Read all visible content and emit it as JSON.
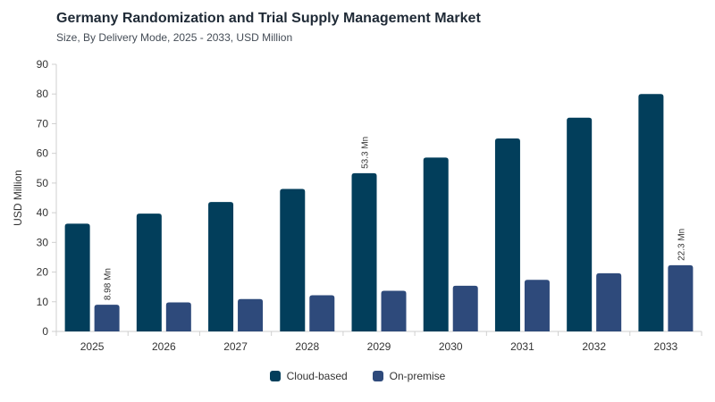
{
  "header": {
    "title": "Germany Randomization and Trial Supply Management Market",
    "subtitle": "Size, By Delivery Mode, 2025 - 2033, USD Million"
  },
  "chart_data": {
    "type": "bar",
    "categories": [
      "2025",
      "2026",
      "2027",
      "2028",
      "2029",
      "2030",
      "2031",
      "2032",
      "2033"
    ],
    "series": [
      {
        "name": "Cloud-based",
        "color": "#023e5b",
        "values": [
          36.3,
          39.7,
          43.6,
          48.0,
          53.3,
          58.6,
          65.0,
          72.0,
          80.0
        ]
      },
      {
        "name": "On-premise",
        "color": "#2e4a7b",
        "values": [
          8.98,
          9.8,
          10.9,
          12.2,
          13.7,
          15.4,
          17.4,
          19.6,
          22.3
        ]
      }
    ],
    "data_labels": [
      {
        "series": 1,
        "index": 0,
        "text": "8.98 Mn"
      },
      {
        "series": 0,
        "index": 4,
        "text": "53.3 Mn"
      },
      {
        "series": 1,
        "index": 8,
        "text": "22.3 Mn"
      }
    ],
    "ylabel": "USD Million",
    "xlabel": "",
    "ylim": [
      0,
      90
    ],
    "yticks": [
      0,
      10,
      20,
      30,
      40,
      50,
      60,
      70,
      80,
      90
    ],
    "grid": false,
    "legend": "bottom-center"
  }
}
